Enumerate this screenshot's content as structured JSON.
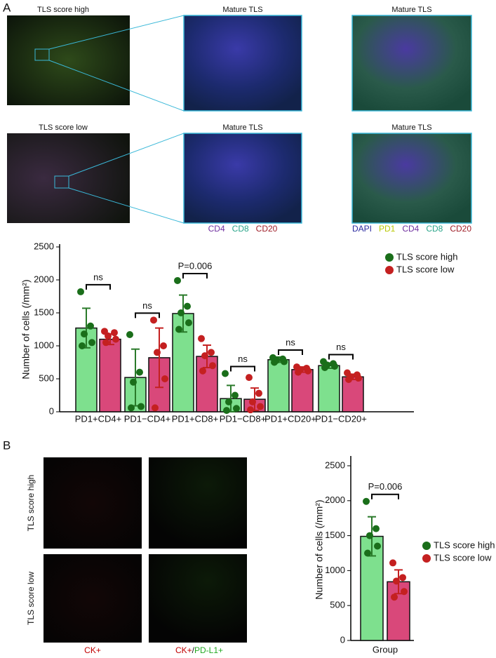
{
  "figure": {
    "panel_a": "A",
    "panel_b": "B",
    "a_images": [
      "TLS score high",
      "Mature TLS",
      "Mature TLS",
      "TLS score low",
      "Mature TLS",
      "Mature TLS"
    ],
    "a_markers_1": [
      "CD4",
      "CD8",
      "CD20"
    ],
    "a_markers_2": [
      "DAPI",
      "PD1",
      "CD4",
      "CD8",
      "CD20"
    ],
    "b_rows": [
      "TLS score high",
      "TLS score low"
    ],
    "b_col_1": [
      "CK+"
    ],
    "b_col_2": [
      "CK+",
      "/",
      "PD-L1+"
    ]
  },
  "chart_data": [
    {
      "type": "bar",
      "ylabel": "Number of cells (/mm²)",
      "categories": [
        "PD1+CD4+",
        "PD1−CD4+",
        "PD1+CD8+",
        "PD1−CD8+",
        "PD1+CD20+",
        "PD1−CD20+"
      ],
      "series": [
        {
          "name": "TLS score high",
          "color": "#7ee08e",
          "point_color": "#1a6e1a",
          "error_color": "#2a7a2a",
          "values": [
            1270,
            520,
            1490,
            200,
            790,
            700
          ],
          "errors": [
            300,
            430,
            280,
            200,
            40,
            40
          ],
          "points": [
            [
              1820,
              1300,
              1180,
              1050,
              1000
            ],
            [
              1170,
              600,
              450,
              80,
              60
            ],
            [
              1990,
              1600,
              1500,
              1350,
              1250
            ],
            [
              580,
              250,
              150,
              50,
              20
            ],
            [
              820,
              800,
              780,
              760,
              750
            ],
            [
              760,
              730,
              710,
              690,
              670
            ]
          ]
        },
        {
          "name": "TLS score low",
          "color": "#d9487a",
          "point_color": "#c42020",
          "error_color": "#c42020",
          "values": [
            1100,
            820,
            840,
            190,
            640,
            530
          ],
          "errors": [
            80,
            450,
            170,
            170,
            40,
            40
          ],
          "points": [
            [
              1220,
              1200,
              1150,
              1100,
              1050
            ],
            [
              1390,
              1000,
              900,
              500,
              60
            ],
            [
              1110,
              900,
              850,
              700,
              620
            ],
            [
              520,
              280,
              150,
              80,
              30
            ],
            [
              680,
              660,
              640,
              620,
              600
            ],
            [
              590,
              560,
              530,
              510,
              490
            ]
          ]
        }
      ],
      "annotations": [
        "ns",
        "ns",
        "P=0.006",
        "ns",
        "ns",
        "ns"
      ],
      "ylim": [
        0,
        2500
      ],
      "yticks": [
        0,
        500,
        1000,
        1500,
        2000,
        2500
      ],
      "legend": "top-right"
    },
    {
      "type": "bar",
      "ylabel": "Number of cells (/mm²)",
      "categories": [
        "Group"
      ],
      "series": [
        {
          "name": "TLS score high",
          "color": "#7ee08e",
          "point_color": "#1a6e1a",
          "error_color": "#2a7a2a",
          "values": [
            1490
          ],
          "errors": [
            280
          ],
          "points": [
            [
              1990,
              1600,
              1500,
              1350,
              1250
            ]
          ]
        },
        {
          "name": "TLS score low",
          "color": "#d9487a",
          "point_color": "#c42020",
          "error_color": "#c42020",
          "values": [
            840
          ],
          "errors": [
            170
          ],
          "points": [
            [
              1110,
              900,
              850,
              700,
              620
            ]
          ]
        }
      ],
      "annotations": [
        "P=0.006"
      ],
      "ylim": [
        0,
        2600
      ],
      "yticks": [
        0,
        500,
        1000,
        1500,
        2000,
        2500
      ],
      "legend": "right"
    }
  ]
}
